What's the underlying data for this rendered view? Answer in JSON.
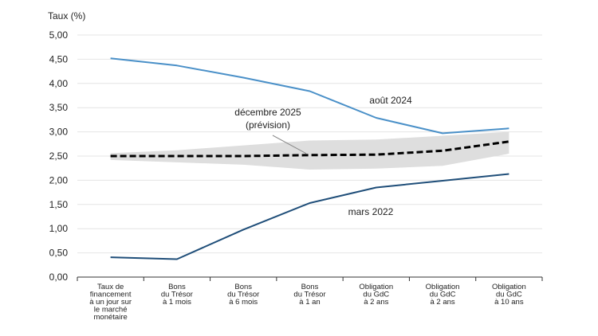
{
  "chart_data": {
    "type": "line",
    "title": "",
    "xlabel": "",
    "ylabel": "Taux (%)",
    "ylim": [
      0,
      5
    ],
    "yticks": [
      "0,00",
      "0,50",
      "1,00",
      "1,50",
      "2,00",
      "2,50",
      "3,00",
      "3,50",
      "4,00",
      "4,50",
      "5,00"
    ],
    "grid": true,
    "legend": "none",
    "categories": [
      [
        "Taux de",
        "financement",
        "à un jour sur",
        "le marché",
        "monétaire"
      ],
      [
        "Bons",
        "du Trésor",
        "à 1 mois"
      ],
      [
        "Bons",
        "du Trésor",
        "à 6 mois"
      ],
      [
        "Bons",
        "du Trésor",
        "à 1 an"
      ],
      [
        "Obligation",
        "du GdC",
        "à 2 ans"
      ],
      [
        "Obligation",
        "du GdC",
        "à 2 ans"
      ],
      [
        "Obligation",
        "du GdC",
        "à 10 ans"
      ]
    ],
    "series": [
      {
        "name": "août 2024",
        "values": [
          4.52,
          4.37,
          4.12,
          3.84,
          3.29,
          2.97,
          3.07
        ],
        "color": "#4a90c8",
        "style": "solid"
      },
      {
        "name": "mars 2022",
        "values": [
          0.41,
          0.37,
          0.98,
          1.53,
          1.85,
          1.99,
          2.13
        ],
        "color": "#1f4e79",
        "style": "solid"
      },
      {
        "name": "décembre 2025 (prévision)",
        "values": [
          2.5,
          2.5,
          2.5,
          2.52,
          2.53,
          2.61,
          2.8
        ],
        "color": "#000000",
        "style": "dashed"
      }
    ],
    "band": {
      "lower": [
        2.42,
        2.37,
        2.32,
        2.22,
        2.24,
        2.3,
        2.55
      ],
      "upper": [
        2.56,
        2.62,
        2.72,
        2.82,
        2.84,
        2.92,
        3.0
      ],
      "color": "#dedede"
    },
    "annotations": [
      {
        "lines": [
          "août 2024"
        ]
      },
      {
        "lines": [
          "mars 2022"
        ]
      },
      {
        "lines": [
          "décembre 2025",
          "(prévision)"
        ]
      }
    ]
  }
}
